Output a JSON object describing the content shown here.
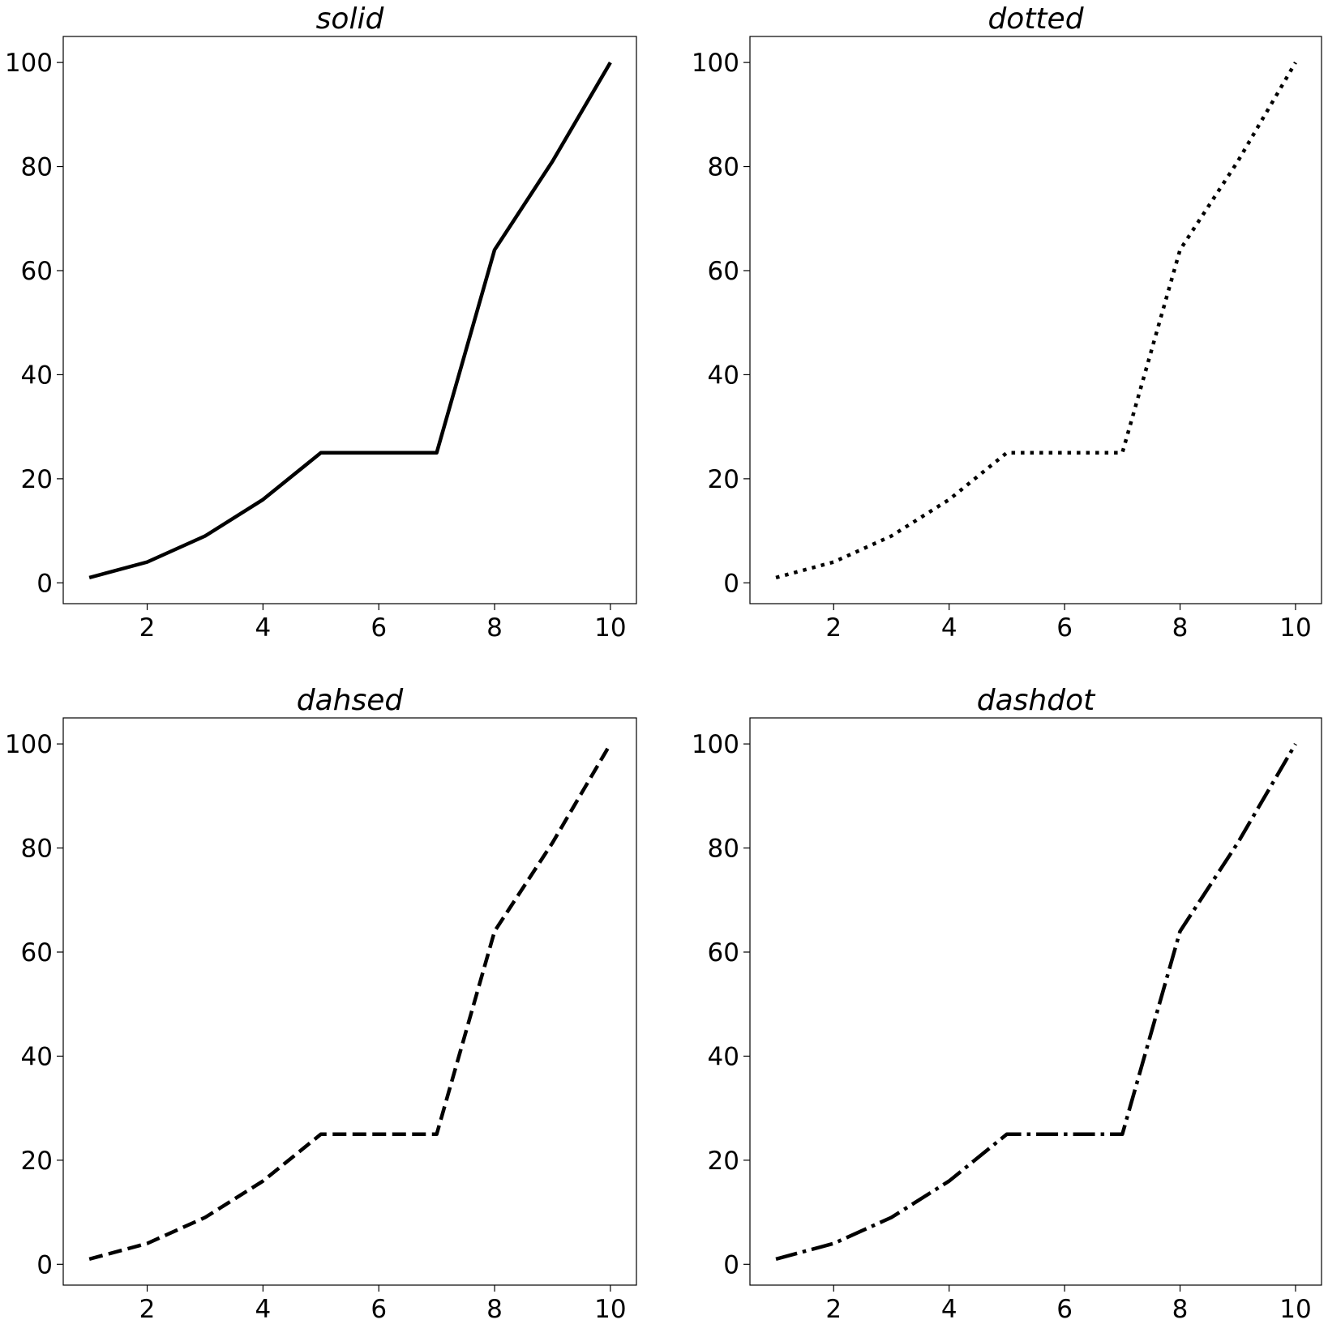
{
  "chart_data": [
    {
      "type": "line",
      "title": "solid",
      "linestyle": "solid",
      "color": "#000000",
      "x": [
        1,
        2,
        3,
        4,
        5,
        6,
        7,
        8,
        9,
        10
      ],
      "series": [
        {
          "values": [
            1,
            4,
            9,
            16,
            25,
            25,
            25,
            64,
            81,
            100
          ]
        }
      ],
      "xlim": [
        0.55,
        10.45
      ],
      "ylim": [
        -4,
        105
      ],
      "xticks": [
        2,
        4,
        6,
        8,
        10
      ],
      "yticks": [
        0,
        20,
        40,
        60,
        80,
        100
      ],
      "xlabel": "",
      "ylabel": "",
      "grid": false
    },
    {
      "type": "line",
      "title": "dotted",
      "linestyle": "dotted",
      "color": "#000000",
      "x": [
        1,
        2,
        3,
        4,
        5,
        6,
        7,
        8,
        9,
        10
      ],
      "series": [
        {
          "values": [
            1,
            4,
            9,
            16,
            25,
            25,
            25,
            64,
            81,
            100
          ]
        }
      ],
      "xlim": [
        0.55,
        10.45
      ],
      "ylim": [
        -4,
        105
      ],
      "xticks": [
        2,
        4,
        6,
        8,
        10
      ],
      "yticks": [
        0,
        20,
        40,
        60,
        80,
        100
      ],
      "xlabel": "",
      "ylabel": "",
      "grid": false
    },
    {
      "type": "line",
      "title": "dahsed",
      "linestyle": "dashed",
      "color": "#000000",
      "x": [
        1,
        2,
        3,
        4,
        5,
        6,
        7,
        8,
        9,
        10
      ],
      "series": [
        {
          "values": [
            1,
            4,
            9,
            16,
            25,
            25,
            25,
            64,
            81,
            100
          ]
        }
      ],
      "xlim": [
        0.55,
        10.45
      ],
      "ylim": [
        -4,
        105
      ],
      "xticks": [
        2,
        4,
        6,
        8,
        10
      ],
      "yticks": [
        0,
        20,
        40,
        60,
        80,
        100
      ],
      "xlabel": "",
      "ylabel": "",
      "grid": false
    },
    {
      "type": "line",
      "title": "dashdot",
      "linestyle": "dashdot",
      "color": "#000000",
      "x": [
        1,
        2,
        3,
        4,
        5,
        6,
        7,
        8,
        9,
        10
      ],
      "series": [
        {
          "values": [
            1,
            4,
            9,
            16,
            25,
            25,
            25,
            64,
            81,
            100
          ]
        }
      ],
      "xlim": [
        0.55,
        10.45
      ],
      "ylim": [
        -4,
        105
      ],
      "xticks": [
        2,
        4,
        6,
        8,
        10
      ],
      "yticks": [
        0,
        20,
        40,
        60,
        80,
        100
      ],
      "xlabel": "",
      "ylabel": "",
      "grid": false
    }
  ]
}
